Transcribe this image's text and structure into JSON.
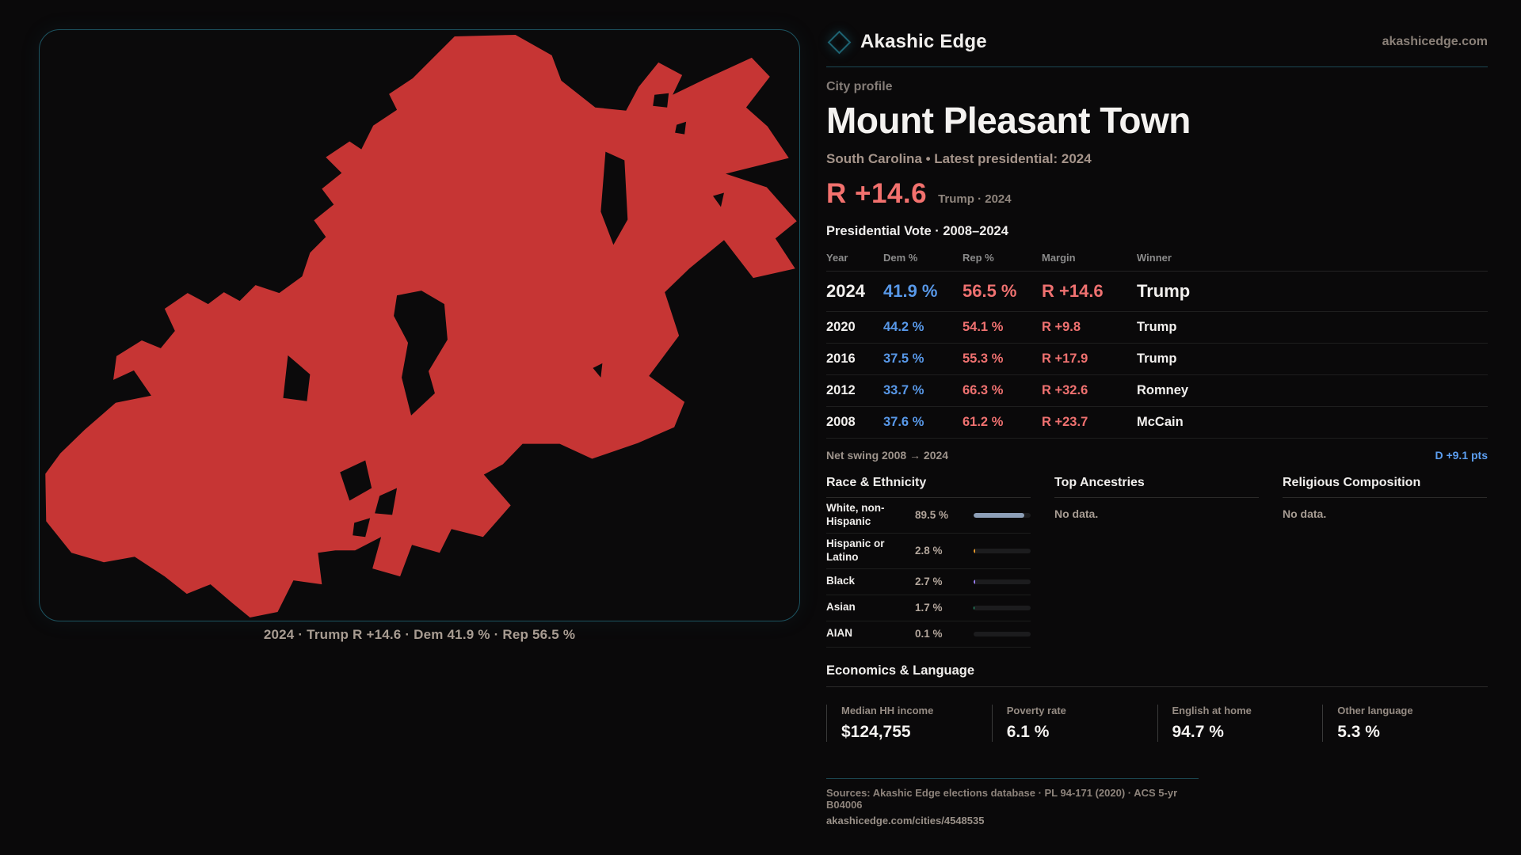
{
  "brand": {
    "name": "Akashic Edge",
    "site": "akashicedge.com",
    "accent_teal": "#1d5360"
  },
  "map": {
    "caption": "2024 · Trump R +14.6 · Dem 41.9 % · Rep 56.5 %",
    "fill_color": "#c63534"
  },
  "profile": {
    "kicker": "City profile",
    "title": "Mount Pleasant Town",
    "subtitle": "South Carolina • Latest presidential: 2024",
    "headline_margin": "R +14.6",
    "headline_note": "Trump · 2024"
  },
  "table": {
    "title": "Presidential Vote · 2008–2024",
    "columns": {
      "year": "Year",
      "dem": "Dem %",
      "rep": "Rep %",
      "margin": "Margin",
      "winner": "Winner"
    },
    "rows": [
      {
        "year": "2024",
        "dem": "41.9 %",
        "rep": "56.5 %",
        "margin": "R +14.6",
        "winner": "Trump"
      },
      {
        "year": "2020",
        "dem": "44.2 %",
        "rep": "54.1 %",
        "margin": "R +9.8",
        "winner": "Trump"
      },
      {
        "year": "2016",
        "dem": "37.5 %",
        "rep": "55.3 %",
        "margin": "R +17.9",
        "winner": "Trump"
      },
      {
        "year": "2012",
        "dem": "33.7 %",
        "rep": "66.3 %",
        "margin": "R +32.6",
        "winner": "Romney"
      },
      {
        "year": "2008",
        "dem": "37.6 %",
        "rep": "61.2 %",
        "margin": "R +23.7",
        "winner": "McCain"
      }
    ],
    "net_swing_label": "Net swing 2008 → 2024",
    "net_swing_value": "D +9.1 pts",
    "dem_color": "#5898e8",
    "rep_color": "#ef7170"
  },
  "race": {
    "title": "Race & Ethnicity",
    "rows": [
      {
        "label": "White, non-Hispanic",
        "value": "89.5 %",
        "pct": 89.5,
        "color": "#8d9fb7"
      },
      {
        "label": "Hispanic or Latino",
        "value": "2.8 %",
        "pct": 2.8,
        "color": "#e6992b"
      },
      {
        "label": "Black",
        "value": "2.7 %",
        "pct": 2.7,
        "color": "#9a7ef2"
      },
      {
        "label": "Asian",
        "value": "1.7 %",
        "pct": 1.7,
        "color": "#2dc98e"
      },
      {
        "label": "AIAN",
        "value": "0.1 %",
        "pct": 0.1,
        "color": "#9aa7b5"
      }
    ]
  },
  "ancestries": {
    "title": "Top Ancestries",
    "empty": "No data."
  },
  "religion": {
    "title": "Religious Composition",
    "empty": "No data."
  },
  "economics": {
    "title": "Economics & Language",
    "stats": [
      {
        "label": "Median HH income",
        "value": "$124,755"
      },
      {
        "label": "Poverty rate",
        "value": "6.1 %"
      },
      {
        "label": "English at home",
        "value": "94.7 %"
      },
      {
        "label": "Other language",
        "value": "5.3 %"
      }
    ]
  },
  "footer": {
    "sources": "Sources: Akashic Edge elections database · PL 94-171 (2020) · ACS 5-yr B04006",
    "permalink": "akashicedge.com/cities/4548535"
  }
}
